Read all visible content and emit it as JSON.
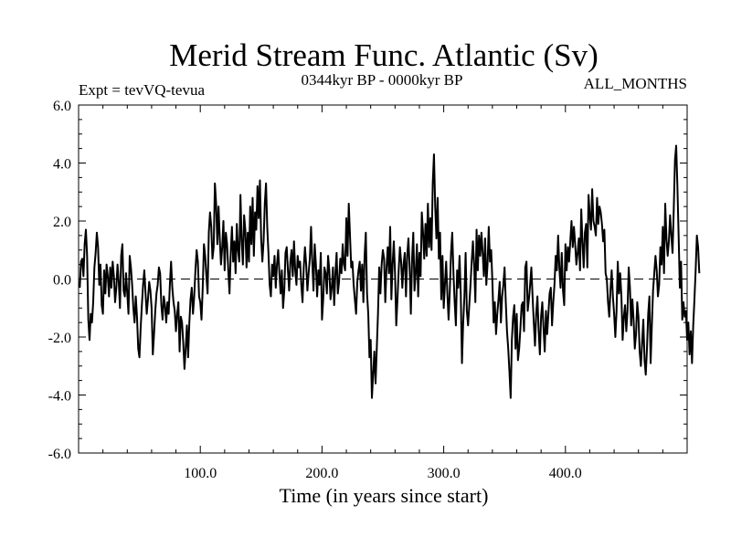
{
  "chart_data": {
    "type": "line",
    "title": "Merid Stream Func. Atlantic (Sv)",
    "subtitle": "0344kyr BP - 0000kyr BP",
    "left_label": "Expt = tevVQ-tevua",
    "right_label": "ALL_MONTHS",
    "xlabel": "Time (in years since start)",
    "ylabel": "",
    "xlim": [
      0,
      500
    ],
    "ylim": [
      -6.0,
      6.0
    ],
    "x_ticks": [
      100,
      200,
      300,
      400
    ],
    "x_tick_labels": [
      "100.0",
      "200.0",
      "300.0",
      "400.0"
    ],
    "y_ticks": [
      6,
      4,
      2,
      0,
      -2,
      -4,
      -6
    ],
    "y_tick_labels": [
      "6.0",
      "4.0",
      "2.0",
      "0.0",
      "-2.0",
      "-4.0",
      "-6.0"
    ],
    "reference_line": {
      "y": 0,
      "style": "dashed"
    },
    "grid": false,
    "series": [
      {
        "color": "#000000",
        "x_start": 1,
        "x_step": 1,
        "values": [
          -0.3,
          0.6,
          0.7,
          0.1,
          1.2,
          1.7,
          0.8,
          -1.4,
          -2.1,
          -1.2,
          -1.5,
          -0.8,
          0.4,
          0.9,
          1.6,
          1.1,
          -0.2,
          0.5,
          -0.9,
          -1.2,
          0.3,
          -0.5,
          0.5,
          0.1,
          -0.6,
          0.4,
          -0.3,
          0.6,
          0.1,
          -0.8,
          -0.3,
          0.5,
          -0.1,
          -1.0,
          0.8,
          1.2,
          -0.4,
          -0.6,
          0.2,
          -0.5,
          -1.2,
          0.8,
          0.4,
          -0.2,
          -1.0,
          -1.5,
          -0.6,
          -1.3,
          -2.4,
          -2.7,
          -1.7,
          -0.9,
          -0.2,
          0.3,
          -0.5,
          -1.2,
          -0.7,
          -0.1,
          -0.4,
          -1.0,
          -2.6,
          -1.9,
          -1.1,
          -0.5,
          -0.2,
          0.4,
          0.2,
          -0.9,
          -1.4,
          -0.6,
          -0.9,
          -1.5,
          -0.8,
          -1.2,
          -0.2,
          0.6,
          -0.3,
          -0.8,
          -1.1,
          -1.8,
          -1.2,
          -0.8,
          -2.5,
          -1.3,
          -1.5,
          -2.2,
          -3.1,
          -2.4,
          -1.6,
          -2.7,
          -1.5,
          -0.7,
          -0.3,
          -1.2,
          -0.6,
          0.3,
          1.0,
          0.6,
          -0.6,
          -0.8,
          -1.4,
          -0.3,
          1.2,
          0.8,
          0.1,
          -0.5,
          1.6,
          2.3,
          1.8,
          0.7,
          1.1,
          3.3,
          2.6,
          1.2,
          2.5,
          1.4,
          0.5,
          1.1,
          2.0,
          0.3,
          1.6,
          1.2,
          0.3,
          -0.5,
          0.9,
          1.8,
          0.6,
          1.3,
          0.2,
          1.9,
          1.0,
          0.6,
          2.9,
          1.3,
          0.5,
          2.2,
          1.7,
          0.4,
          1.6,
          0.6,
          2.5,
          1.2,
          2.8,
          0.8,
          2.3,
          1.7,
          3.2,
          2.1,
          3.4,
          1.4,
          0.6,
          1.3,
          2.6,
          3.3,
          1.8,
          0.9,
          -0.2,
          -0.6,
          0.5,
          0.1,
          0.8,
          -0.3,
          0.5,
          1.0,
          0.2,
          -0.5,
          0.3,
          -1.0,
          -0.4,
          0.9,
          1.1,
          0.3,
          -0.4,
          0.6,
          1.0,
          0.1,
          1.3,
          0.3,
          -0.2,
          0.8,
          0.4,
          0.6,
          -0.2,
          -0.8,
          0.4,
          1.1,
          0.5,
          -0.4,
          0.2,
          0.7,
          1.8,
          0.6,
          -0.4,
          1.2,
          0.5,
          -0.6,
          0.3,
          -0.2,
          0.9,
          -1.4,
          -0.7,
          0.4,
          0.2,
          -0.5,
          0.8,
          0.3,
          -0.7,
          -0.3,
          0.4,
          -0.9,
          0.2,
          0.9,
          -0.5,
          -0.1,
          0.7,
          0.2,
          1.2,
          0.5,
          0.3,
          2.1,
          0.8,
          2.6,
          1.5,
          0.4,
          0.6,
          -0.2,
          -0.7,
          -1.2,
          -0.1,
          0.3,
          0.6,
          -0.4,
          0.5,
          -0.8,
          0.8,
          1.6,
          -0.5,
          -1.2,
          -2.7,
          -2.1,
          -4.1,
          -3.3,
          -2.5,
          -3.6,
          -2.4,
          -1.2,
          0.4,
          -0.5,
          0.5,
          1.0,
          0.7,
          -0.8,
          0.4,
          1.1,
          0.2,
          1.8,
          -0.7,
          0.5,
          1.3,
          0.2,
          -1.6,
          -0.7,
          0.3,
          1.1,
          0.6,
          -0.3,
          0.5,
          0.9,
          -0.6,
          0.8,
          1.4,
          0.4,
          -1.2,
          0.7,
          1.6,
          -0.4,
          0.2,
          1.2,
          -0.6,
          0.9,
          0.1,
          2.3,
          1.6,
          0.7,
          1.9,
          0.8,
          2.6,
          1.1,
          2.1,
          1.0,
          3.3,
          4.3,
          2.5,
          1.4,
          2.8,
          0.7,
          1.6,
          -0.7,
          0.8,
          -1.0,
          -0.2,
          0.6,
          -0.5,
          -1.4,
          -0.4,
          0.9,
          1.6,
          0.2,
          -0.8,
          -1.6,
          0.3,
          -0.3,
          0.8,
          -0.5,
          -2.9,
          -1.5,
          -0.6,
          0.9,
          -1.1,
          -1.6,
          -0.9,
          -0.2,
          0.6,
          1.3,
          0.5,
          -0.8,
          1.7,
          0.3,
          1.5,
          0.8,
          1.6,
          0.9,
          0.1,
          1.4,
          -0.2,
          0.5,
          1.8,
          0.6,
          1.0,
          -0.1,
          -1.5,
          -0.8,
          -1.9,
          -1.2,
          -0.7,
          -0.1,
          -1.5,
          -0.6,
          -0.2,
          0.4,
          -0.8,
          -1.8,
          -2.4,
          -3.2,
          -4.1,
          -2.1,
          -1.3,
          -0.9,
          -2.4,
          -1.2,
          -2.8,
          -2.4,
          -1.7,
          -0.9,
          -0.8,
          -1.8,
          0.4,
          0.6,
          -1.1,
          -0.7,
          -0.2,
          0.4,
          -0.6,
          -1.5,
          -2.3,
          -1.2,
          -0.6,
          -1.8,
          -2.6,
          -1.3,
          -0.8,
          -1.7,
          -2.5,
          -1.1,
          -1.9,
          -1.2,
          -0.5,
          -0.3,
          -1.6,
          -0.8,
          -0.2,
          0.8,
          0.3,
          1.5,
          0.4,
          -0.3,
          0.9,
          -0.4,
          -0.9,
          1.2,
          0.3,
          1.1,
          0.6,
          1.3,
          2.0,
          1.1,
          1.8,
          1.2,
          0.5,
          0.9,
          1.4,
          0.3,
          2.4,
          1.3,
          0.4,
          1.6,
          1.9,
          0.4,
          2.9,
          2.2,
          1.7,
          3.1,
          2.0,
          1.8,
          1.5,
          2.8,
          1.9,
          2.5,
          2.3,
          1.9,
          1.3,
          1.7,
          0.2,
          0.0,
          -0.8,
          -1.3,
          -0.4,
          0.3,
          -0.6,
          -1.2,
          -2.0,
          -1.1,
          0.6,
          -0.5,
          0.2,
          -0.6,
          -2.1,
          -1.3,
          -0.9,
          -1.8,
          -1.1,
          0.4,
          -0.3,
          -1.6,
          -0.7,
          -1.4,
          -2.4,
          -1.9,
          -0.8,
          -1.3,
          -2.5,
          -3.0,
          -2.2,
          -1.4,
          -2.8,
          -3.3,
          -2.4,
          -1.2,
          -0.6,
          -2.9,
          -1.6,
          -0.4,
          0.2,
          0.8,
          0.3,
          -0.6,
          -0.2,
          1.1,
          0.5,
          1.8,
          0.2,
          2.6,
          1.4,
          0.8,
          1.3,
          2.2,
          1.5,
          0.9,
          2.4,
          4.1,
          4.6,
          3.2,
          1.5,
          -0.3,
          0.6,
          -1.4,
          -0.8,
          -1.3,
          -1.1,
          -2.1,
          -1.5,
          -2.6,
          -1.8,
          -2.9,
          -1.6,
          -0.7,
          0.3,
          1.5,
          1.1,
          0.2
        ]
      }
    ]
  }
}
